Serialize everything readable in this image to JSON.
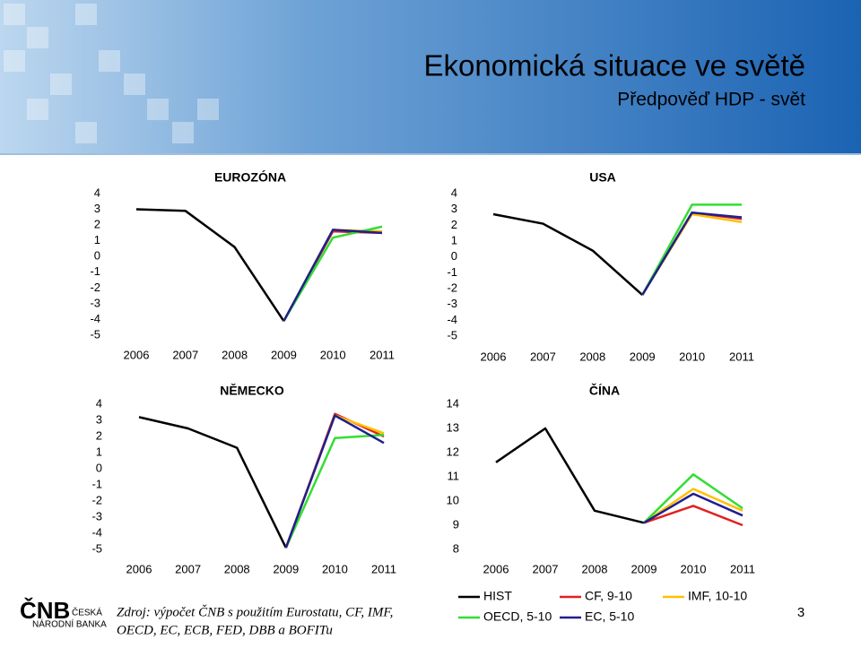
{
  "header": {
    "title": "Ekonomická situace ve světě",
    "subtitle": "Předpověď HDP - svět"
  },
  "chart_data": [
    {
      "type": "line",
      "title": "EUROZÓNA",
      "categories": [
        "2006",
        "2007",
        "2008",
        "2009",
        "2010",
        "2011"
      ],
      "ylim": [
        -5,
        4
      ],
      "yticks": [
        4,
        3,
        2,
        1,
        0,
        -1,
        -2,
        -3,
        -4,
        -5
      ],
      "series": [
        {
          "name": "HIST",
          "color": "#000000",
          "values": [
            3.0,
            2.9,
            0.6,
            -4.1,
            null,
            null
          ]
        },
        {
          "name": "CF, 9-10",
          "color": "#e32020",
          "values": [
            null,
            null,
            null,
            -4.1,
            1.6,
            1.5
          ]
        },
        {
          "name": "IMF, 10-10",
          "color": "#ffc000",
          "values": [
            null,
            null,
            null,
            -4.1,
            1.7,
            1.6
          ]
        },
        {
          "name": "OECD, 5-10",
          "color": "#33dd33",
          "values": [
            null,
            null,
            null,
            -4.1,
            1.2,
            1.9
          ]
        },
        {
          "name": "EC, 5-10",
          "color": "#1f1f8f",
          "values": [
            null,
            null,
            null,
            -4.1,
            1.7,
            1.5
          ]
        }
      ]
    },
    {
      "type": "line",
      "title": "USA",
      "categories": [
        "2006",
        "2007",
        "2008",
        "2009",
        "2010",
        "2011"
      ],
      "ylim": [
        -5,
        4
      ],
      "yticks": [
        4,
        3,
        2,
        1,
        0,
        -1,
        -2,
        -3,
        -4,
        -5
      ],
      "series": [
        {
          "color": "#000000",
          "values": [
            2.7,
            2.1,
            0.4,
            -2.4,
            null,
            null
          ]
        },
        {
          "color": "#e32020",
          "values": [
            null,
            null,
            null,
            -2.4,
            2.8,
            2.4
          ]
        },
        {
          "color": "#ffc000",
          "values": [
            null,
            null,
            null,
            -2.4,
            2.7,
            2.2
          ]
        },
        {
          "color": "#33dd33",
          "values": [
            null,
            null,
            null,
            -2.4,
            3.3,
            3.3
          ]
        },
        {
          "color": "#1f1f8f",
          "values": [
            null,
            null,
            null,
            -2.4,
            2.8,
            2.5
          ]
        }
      ]
    },
    {
      "type": "line",
      "title": "NĚMECKO",
      "categories": [
        "2006",
        "2007",
        "2008",
        "2009",
        "2010",
        "2011"
      ],
      "ylim": [
        -5,
        4
      ],
      "yticks": [
        4,
        3,
        2,
        1,
        0,
        -1,
        -2,
        -3,
        -4,
        -5
      ],
      "series": [
        {
          "color": "#000000",
          "values": [
            3.2,
            2.5,
            1.3,
            -4.9,
            null,
            null
          ]
        },
        {
          "color": "#e32020",
          "values": [
            null,
            null,
            null,
            -4.9,
            3.4,
            2.0
          ]
        },
        {
          "color": "#ffc000",
          "values": [
            null,
            null,
            null,
            -4.9,
            3.3,
            2.2
          ]
        },
        {
          "color": "#33dd33",
          "values": [
            null,
            null,
            null,
            -4.9,
            1.9,
            2.1
          ]
        },
        {
          "color": "#1f1f8f",
          "values": [
            null,
            null,
            null,
            -4.9,
            3.3,
            1.6
          ]
        }
      ]
    },
    {
      "type": "line",
      "title": "ČÍNA",
      "categories": [
        "2006",
        "2007",
        "2008",
        "2009",
        "2010",
        "2011"
      ],
      "ylim": [
        8,
        14
      ],
      "yticks": [
        14,
        13,
        12,
        11,
        10,
        9,
        8
      ],
      "series": [
        {
          "color": "#000000",
          "values": [
            11.6,
            13.0,
            9.6,
            9.1,
            null,
            null
          ]
        },
        {
          "color": "#e32020",
          "values": [
            null,
            null,
            null,
            9.1,
            9.8,
            9.0
          ]
        },
        {
          "color": "#ffc000",
          "values": [
            null,
            null,
            null,
            9.1,
            10.5,
            9.6
          ]
        },
        {
          "color": "#33dd33",
          "values": [
            null,
            null,
            null,
            9.1,
            11.1,
            9.7
          ]
        },
        {
          "color": "#1f1f8f",
          "values": [
            null,
            null,
            null,
            9.1,
            10.3,
            9.4
          ]
        }
      ]
    }
  ],
  "source": {
    "line1": "Zdroj: výpočet ČNB s použitím Eurostatu, CF, IMF,",
    "line2": "OECD, EC, ECB, FED, DBB a BOFITu"
  },
  "logo": {
    "mark": "ČNB",
    "line1": "ČESKÁ",
    "line2": "NÁRODNÍ BANKA"
  },
  "page_number": 3
}
